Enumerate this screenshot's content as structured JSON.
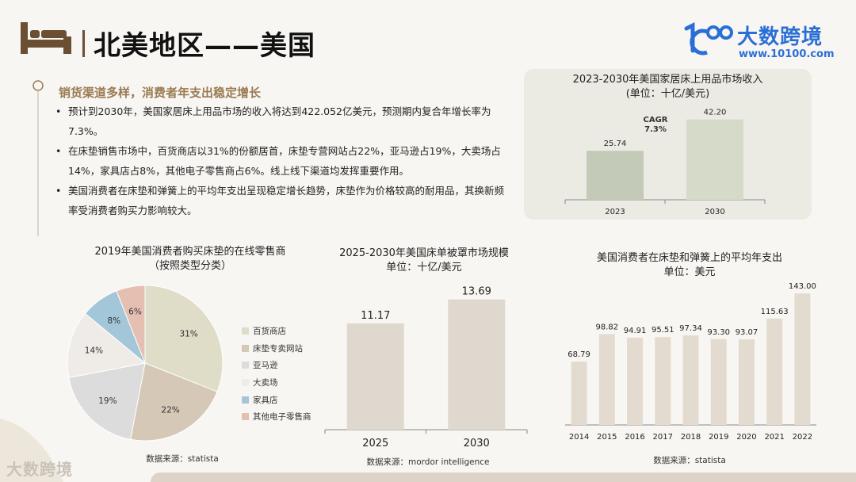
{
  "page": {
    "title": "北美地区——美国",
    "brand": "大数跨境",
    "brand_url": "www.10100.com",
    "watermark": "大数跨境"
  },
  "summary": {
    "heading": "销货渠道多样，消费者年支出稳定增长",
    "bullets": [
      "预计到2030年，美国家居床上用品市场的收入将达到422.052亿美元，预测期内复合年增长率为 7.3%。",
      "在床垫销售市场中，百货商店以31%的份额居首，床垫专营网站占22%，亚马逊占19%，大卖场占14%，家具店占8%，其他电子零售商占6%。线上线下渠道均发挥重要作用。",
      "美国消费者在床垫和弹簧上的平均年支出呈现稳定增长趋势，床垫作为价格较高的耐用品，其换新频率受消费者购买力影响较大。"
    ]
  },
  "chart_data": [
    {
      "id": "revenue",
      "type": "bar",
      "title": "2023-2030年美国家居床上用品市场收入",
      "subtitle": "(单位：十亿/美元)",
      "categories": [
        "2023",
        "2030"
      ],
      "values": [
        25.74,
        42.2
      ],
      "value_labels": [
        "25.74",
        "42.20"
      ],
      "annotation": [
        "CAGR",
        "7.3%"
      ],
      "ylim": [
        0,
        50
      ],
      "colors": [
        "#c3cab8",
        "#d6dbc9"
      ]
    },
    {
      "id": "pie",
      "type": "pie",
      "title": "2019年美国消费者购买床垫的在线零售商",
      "subtitle": "（按照类型分类）",
      "categories": [
        "百货商店",
        "床垫专卖网站",
        "亚马逊",
        "大卖场",
        "家具店",
        "其他电子零售商"
      ],
      "values": [
        31,
        22,
        19,
        14,
        8,
        6
      ],
      "value_labels": [
        "31%",
        "22%",
        "19%",
        "14%",
        "8%",
        "6%"
      ],
      "colors": [
        "#dfdcc7",
        "#d5c8b6",
        "#dcdcdc",
        "#efebe7",
        "#a3c7d8",
        "#e6bfb3"
      ],
      "source": "数据来源：statista",
      "legend": "right"
    },
    {
      "id": "bedsheet",
      "type": "bar",
      "title": "2025-2030年美国床单被罩市场规模",
      "subtitle": "单位：十亿/美元",
      "categories": [
        "2025",
        "2030"
      ],
      "values": [
        11.17,
        13.69
      ],
      "value_labels": [
        "11.17",
        "13.69"
      ],
      "ylim": [
        0,
        15
      ],
      "color": "#dfd8ce",
      "source": "数据来源：mordor intelligence"
    },
    {
      "id": "spend",
      "type": "bar",
      "title": "美国消费者在床垫和弹簧上的平均年支出",
      "subtitle": "单位：美元",
      "categories": [
        "2014",
        "2015",
        "2016",
        "2017",
        "2018",
        "2019",
        "2020",
        "2021",
        "2022"
      ],
      "values": [
        68.79,
        98.82,
        94.91,
        95.51,
        97.34,
        93.3,
        93.07,
        115.63,
        143.0
      ],
      "value_labels": [
        "68.79",
        "98.82",
        "94.91",
        "95.51",
        "97.34",
        "93.30",
        "93.07",
        "115.63",
        "143.00"
      ],
      "ylim": [
        0,
        150
      ],
      "color": "#e3dbd0",
      "source": "数据来源：statista"
    }
  ]
}
